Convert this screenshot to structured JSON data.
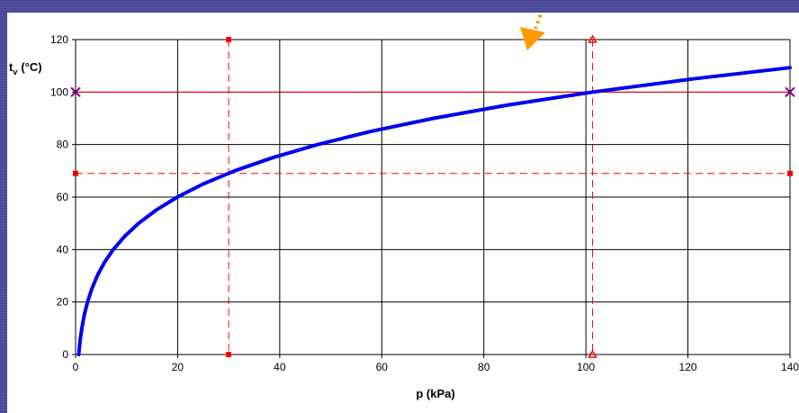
{
  "chart_data": {
    "type": "line",
    "xlabel": "p (kPa)",
    "ylabel": {
      "main": "t",
      "sub": "v",
      "unit": "(°C)"
    },
    "xlim": [
      0,
      140
    ],
    "ylim": [
      0,
      120
    ],
    "x_ticks": [
      0,
      20,
      40,
      60,
      80,
      100,
      120,
      140
    ],
    "y_ticks": [
      0,
      20,
      40,
      60,
      80,
      100,
      120
    ],
    "grid": true,
    "series": [
      {
        "color": "#0000ee",
        "x": [
          0.61,
          0.87,
          1.23,
          1.7,
          2.34,
          3.17,
          4.25,
          5.63,
          7.38,
          9.59,
          12.35,
          15.76,
          19.94,
          25.03,
          31.19,
          38.58,
          47.39,
          57.83,
          70.14,
          84.55,
          101.33,
          120.8,
          140
        ],
        "y": [
          0,
          5,
          10,
          15,
          20,
          25,
          30,
          35,
          40,
          45,
          50,
          55,
          60,
          65,
          70,
          75,
          80,
          85,
          90,
          95,
          100,
          105,
          109.3
        ]
      }
    ],
    "reference_lines": [
      {
        "orientation": "horizontal",
        "value": 100,
        "color": "#ff0000",
        "style": "solid",
        "marker": "x",
        "marker_color": "#800080"
      },
      {
        "orientation": "horizontal",
        "value": 69,
        "color": "#ff0000",
        "style": "dashed",
        "marker": "square",
        "marker_color": "#ff0000"
      },
      {
        "orientation": "vertical",
        "value": 30,
        "color": "#ff0000",
        "style": "dashed",
        "marker": "square",
        "marker_color": "#ff0000"
      },
      {
        "orientation": "vertical",
        "value": 101.3,
        "color": "#ff0000",
        "style": "dashed",
        "marker": "triangle",
        "marker_color": "#ff0000"
      }
    ],
    "annotation": {
      "shape": "arrow",
      "style": "dotted",
      "color": "#ff9900",
      "points_to": "top"
    }
  }
}
